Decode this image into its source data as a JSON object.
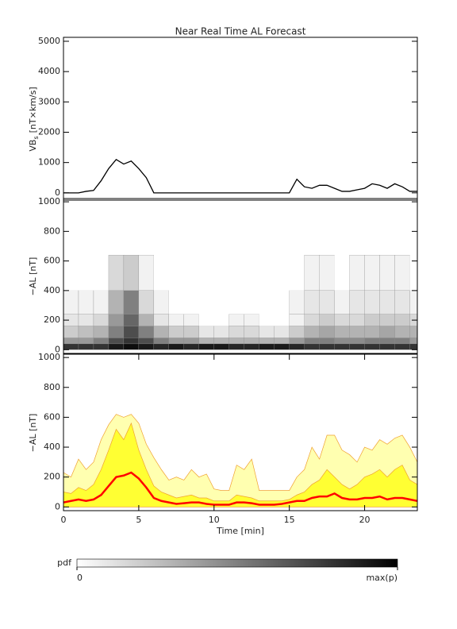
{
  "chart_data": [
    {
      "type": "line",
      "title": "Near Real Time AL Forecast",
      "ylabel": {
        "main": "VB",
        "sub": "s",
        "unit": "[nT×km/s]"
      },
      "color": "#000000",
      "x": [
        0,
        0.5,
        1,
        1.5,
        2,
        2.5,
        3,
        3.5,
        4,
        4.5,
        5,
        5.5,
        6,
        6.5,
        7,
        7.5,
        8,
        8.5,
        9,
        9.5,
        10,
        10.5,
        11,
        11.5,
        12,
        12.5,
        13,
        13.5,
        14,
        14.5,
        15,
        15.5,
        16,
        16.5,
        17,
        17.5,
        18,
        18.5,
        19,
        19.5,
        20,
        20.5,
        21,
        21.5,
        22,
        22.5,
        23,
        23.5
      ],
      "values": [
        0,
        0,
        0,
        50,
        80,
        400,
        800,
        1100,
        950,
        1050,
        800,
        500,
        0,
        0,
        0,
        0,
        0,
        0,
        0,
        0,
        0,
        0,
        0,
        0,
        0,
        0,
        0,
        0,
        0,
        0,
        0,
        450,
        200,
        150,
        250,
        250,
        150,
        50,
        50,
        100,
        150,
        300,
        250,
        150,
        300,
        200,
        50,
        50
      ],
      "xlim": [
        0,
        23.5
      ],
      "ylim": [
        -240,
        5130
      ],
      "yticks": [
        0,
        1000,
        2000,
        3000,
        4000,
        5000
      ]
    },
    {
      "type": "heatmap",
      "ylabel": "−AL [nT]",
      "xbins": [
        0,
        1,
        2,
        3,
        4,
        5,
        6,
        7,
        8,
        9,
        10,
        11,
        12,
        13,
        14,
        15,
        16,
        17,
        18,
        19,
        20,
        21,
        22,
        23,
        23.5
      ],
      "ybins": [
        0,
        40,
        80,
        160,
        240,
        400,
        640
      ],
      "z": [
        [
          0.8,
          0.4,
          0.2,
          0.1,
          0.05,
          0
        ],
        [
          0.8,
          0.4,
          0.25,
          0.1,
          0.05,
          0
        ],
        [
          0.8,
          0.5,
          0.3,
          0.15,
          0.05,
          0
        ],
        [
          0.9,
          0.7,
          0.5,
          0.4,
          0.3,
          0.15
        ],
        [
          0.95,
          0.8,
          0.7,
          0.6,
          0.5,
          0.2
        ],
        [
          0.9,
          0.7,
          0.5,
          0.3,
          0.15,
          0.05
        ],
        [
          0.85,
          0.5,
          0.3,
          0.1,
          0.05,
          0
        ],
        [
          0.9,
          0.4,
          0.2,
          0.05,
          0,
          0
        ],
        [
          0.85,
          0.4,
          0.2,
          0.05,
          0,
          0
        ],
        [
          0.9,
          0.3,
          0.1,
          0,
          0,
          0
        ],
        [
          0.9,
          0.3,
          0.1,
          0,
          0,
          0
        ],
        [
          0.85,
          0.3,
          0.15,
          0.05,
          0,
          0
        ],
        [
          0.85,
          0.3,
          0.15,
          0.05,
          0,
          0
        ],
        [
          0.9,
          0.3,
          0.1,
          0,
          0,
          0
        ],
        [
          0.9,
          0.3,
          0.1,
          0,
          0,
          0
        ],
        [
          0.85,
          0.4,
          0.2,
          0.05,
          0.05,
          0
        ],
        [
          0.8,
          0.5,
          0.3,
          0.15,
          0.1,
          0.05
        ],
        [
          0.8,
          0.5,
          0.35,
          0.2,
          0.1,
          0.05
        ],
        [
          0.8,
          0.45,
          0.3,
          0.15,
          0.05,
          0
        ],
        [
          0.8,
          0.45,
          0.3,
          0.15,
          0.1,
          0.05
        ],
        [
          0.8,
          0.5,
          0.3,
          0.2,
          0.1,
          0.05
        ],
        [
          0.8,
          0.5,
          0.35,
          0.2,
          0.1,
          0.05
        ],
        [
          0.8,
          0.5,
          0.3,
          0.2,
          0.1,
          0.05
        ],
        [
          0.8,
          0.4,
          0.3,
          0.15,
          0.05,
          0
        ]
      ],
      "xlim": [
        0,
        23.5
      ],
      "ylim": [
        -25,
        1022
      ],
      "yticks": [
        0,
        200,
        400,
        600,
        800,
        1000
      ]
    },
    {
      "type": "area",
      "ylabel": "−AL [nT]",
      "xlabel": "Time [min]",
      "x": [
        0,
        0.5,
        1,
        1.5,
        2,
        2.5,
        3,
        3.5,
        4,
        4.5,
        5,
        5.5,
        6,
        6.5,
        7,
        7.5,
        8,
        8.5,
        9,
        9.5,
        10,
        10.5,
        11,
        11.5,
        12,
        12.5,
        13,
        13.5,
        14,
        14.5,
        15,
        15.5,
        16,
        16.5,
        17,
        17.5,
        18,
        18.5,
        19,
        19.5,
        20,
        20.5,
        21,
        21.5,
        22,
        22.5,
        23,
        23.5
      ],
      "edgecolor": "#f0a030",
      "series": [
        {
          "color": "#ffffb0",
          "values": [
            230,
            200,
            320,
            250,
            300,
            450,
            550,
            620,
            600,
            620,
            560,
            420,
            330,
            250,
            180,
            200,
            180,
            250,
            200,
            220,
            120,
            110,
            110,
            280,
            250,
            320,
            110,
            110,
            110,
            110,
            110,
            200,
            250,
            400,
            320,
            480,
            480,
            380,
            350,
            300,
            400,
            380,
            450,
            420,
            460,
            480,
            400,
            300
          ]
        },
        {
          "color": "#ffff33",
          "values": [
            100,
            90,
            130,
            110,
            150,
            250,
            380,
            520,
            450,
            560,
            380,
            250,
            140,
            100,
            80,
            60,
            70,
            80,
            60,
            60,
            40,
            40,
            40,
            80,
            70,
            60,
            40,
            40,
            40,
            40,
            50,
            80,
            100,
            150,
            180,
            250,
            200,
            150,
            120,
            150,
            200,
            220,
            250,
            200,
            250,
            280,
            180,
            150
          ]
        },
        {
          "color": "#ff0000",
          "line": true,
          "values": [
            30,
            40,
            50,
            40,
            50,
            80,
            140,
            200,
            210,
            230,
            190,
            130,
            60,
            40,
            30,
            20,
            25,
            30,
            30,
            20,
            15,
            15,
            15,
            30,
            30,
            25,
            15,
            15,
            15,
            20,
            30,
            40,
            40,
            60,
            70,
            70,
            90,
            60,
            50,
            50,
            60,
            60,
            70,
            50,
            60,
            60,
            50,
            40
          ]
        }
      ],
      "xlim": [
        0,
        23.5
      ],
      "ylim": [
        -25,
        1022
      ],
      "yticks": [
        0,
        200,
        400,
        600,
        800,
        1000
      ],
      "xticks": [
        0,
        5,
        10,
        15,
        20
      ]
    }
  ],
  "colorbar": {
    "label": "pdf",
    "ticks": [
      0,
      {
        "value": 1,
        "label": "max(p)"
      }
    ]
  }
}
